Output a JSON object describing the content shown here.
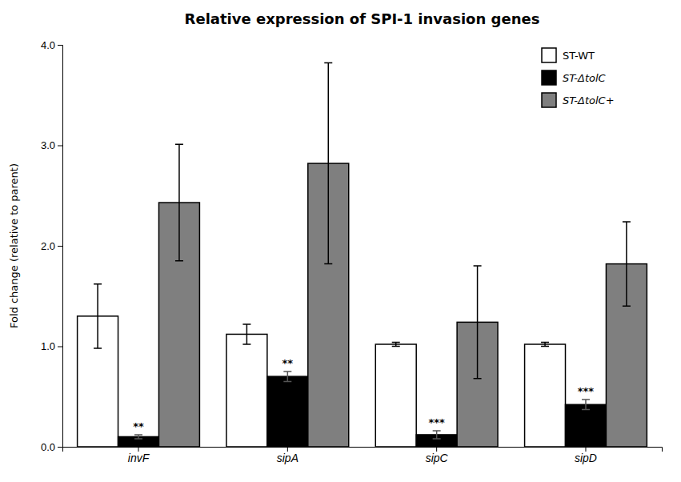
{
  "chart_data": {
    "type": "bar",
    "title": "Relative expression of SPI-1 invasion genes",
    "ylabel": "Fold change (relative to parent)",
    "categories": [
      "invF",
      "sipA",
      "sipC",
      "sipD"
    ],
    "series": [
      {
        "name": "ST-WT",
        "color": "#ffffff",
        "values": [
          1.3,
          1.12,
          1.02,
          1.02
        ],
        "errors": [
          0.32,
          0.1,
          0.02,
          0.02
        ]
      },
      {
        "name": "ST-ΔtolC",
        "color": "#000000",
        "values": [
          0.1,
          0.7,
          0.12,
          0.42
        ],
        "errors": [
          0.02,
          0.05,
          0.04,
          0.05
        ],
        "significance": [
          "**",
          "**",
          "***",
          "***"
        ]
      },
      {
        "name": "ST-ΔtolC+",
        "color": "#7f7f7f",
        "values": [
          2.43,
          2.82,
          1.24,
          1.82
        ],
        "errors": [
          0.58,
          1.0,
          0.56,
          0.42
        ]
      }
    ],
    "ylim": [
      0.0,
      4.0
    ],
    "yticks": [
      {
        "value": 0.0,
        "label": "0.0"
      },
      {
        "value": 1.0,
        "label": "1.0"
      },
      {
        "value": 2.0,
        "label": "2.0"
      },
      {
        "value": 3.0,
        "label": "3.0"
      },
      {
        "value": 4.0,
        "label": "4.0"
      }
    ],
    "grid": false,
    "legend": "upper right"
  }
}
